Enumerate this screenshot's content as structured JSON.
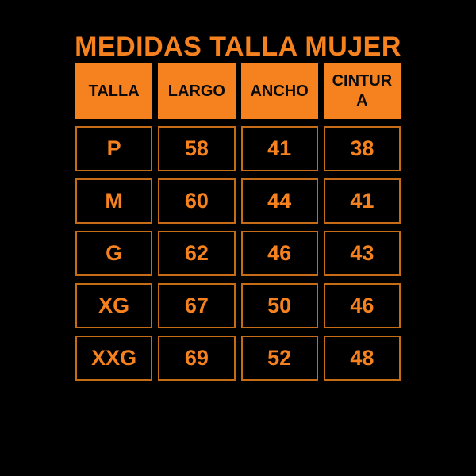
{
  "title": "MEDIDAS TALLA MUJER",
  "colors": {
    "accent": "#F5821F",
    "border": "#C76C16",
    "background": "#000000",
    "header_text": "#0A0A0A"
  },
  "chart_data": {
    "type": "table",
    "title": "MEDIDAS TALLA MUJER",
    "columns": [
      "TALLA",
      "LARGO",
      "ANCHO",
      "CINTURA"
    ],
    "rows": [
      [
        "P",
        "58",
        "41",
        "38"
      ],
      [
        "M",
        "60",
        "44",
        "41"
      ],
      [
        "G",
        "62",
        "46",
        "43"
      ],
      [
        "XG",
        "67",
        "50",
        "46"
      ],
      [
        "XXG",
        "69",
        "52",
        "48"
      ]
    ]
  }
}
